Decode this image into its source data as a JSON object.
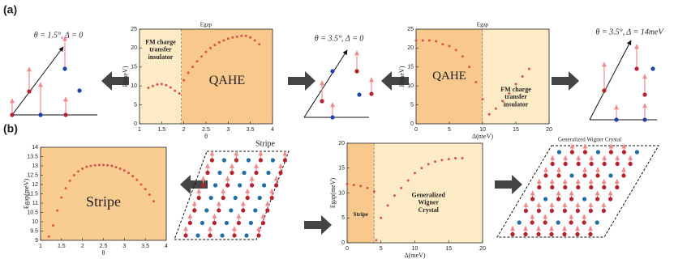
{
  "panel_labels": [
    "(a)",
    "(b)"
  ],
  "diagram_titles": [
    "θ = 1.5°, Δ = 0",
    "θ = 3.5°, Δ = 0",
    "θ = 3.5°, Δ = 14meV",
    "Stripe",
    "Generalized Wigner Crystal"
  ],
  "chart_data": [
    {
      "type": "scatter",
      "title": "Egap",
      "xlabel": "θ",
      "ylabel": "E(meV)",
      "color": "#d9534f",
      "xlim": [
        1,
        4
      ],
      "xticks": [
        1,
        1.5,
        2,
        2.5,
        3,
        3.5,
        4
      ],
      "ylim": [
        0,
        25
      ],
      "yticks": [
        0,
        5,
        10,
        15,
        20,
        25
      ],
      "regions": [
        {
          "label": [
            "FM charge",
            "transfer",
            "insulator"
          ],
          "from": 1,
          "to": 1.95,
          "color": "#fdebc6"
        },
        {
          "label": [
            "QAHE"
          ],
          "from": 1.95,
          "to": 4,
          "color": "#f8c88c"
        }
      ],
      "x": [
        1.2,
        1.3,
        1.4,
        1.5,
        1.6,
        1.7,
        1.8,
        1.9,
        2.0,
        2.1,
        2.2,
        2.3,
        2.4,
        2.5,
        2.6,
        2.7,
        2.8,
        2.9,
        3.0,
        3.1,
        3.2,
        3.3,
        3.4,
        3.5,
        3.6,
        3.7
      ],
      "values": [
        9.5,
        10,
        10.4,
        10.5,
        10.2,
        9.6,
        8.7,
        8.0,
        11.5,
        13.5,
        15,
        16.5,
        17.8,
        19,
        20,
        20.8,
        21.5,
        22,
        22.5,
        22.8,
        23,
        23.2,
        23.2,
        22.8,
        22,
        21
      ]
    },
    {
      "type": "scatter",
      "title": "Egap",
      "xlabel": "Δ(meV)",
      "ylabel": "E(meV)",
      "color": "#d9534f",
      "xlim": [
        0,
        20
      ],
      "xticks": [
        0,
        5,
        10,
        15,
        20
      ],
      "ylim": [
        0,
        25
      ],
      "yticks": [
        0,
        5,
        10,
        15,
        20,
        25
      ],
      "regions": [
        {
          "label": [
            "QAHE"
          ],
          "from": 0,
          "to": 10,
          "color": "#f8c88c"
        },
        {
          "label": [
            "FM charge",
            "transfer",
            "insulator"
          ],
          "from": 10,
          "to": 20,
          "color": "#fdebc6"
        }
      ],
      "x": [
        0,
        1,
        2,
        3,
        4,
        5,
        6,
        7,
        8,
        9,
        10,
        11,
        12,
        13,
        14,
        15,
        16,
        17
      ],
      "values": [
        22,
        22,
        22,
        21.8,
        21,
        20.5,
        19.5,
        17.8,
        15,
        11,
        6.5,
        2.5,
        4,
        6,
        8,
        10.5,
        12.5,
        14.5
      ]
    },
    {
      "type": "scatter",
      "xlabel": "θ",
      "ylabel": "Egap(meV)",
      "color": "#d9534f",
      "xlim": [
        1,
        4
      ],
      "xticks": [
        1,
        1.5,
        2,
        2.5,
        3,
        3.5,
        4
      ],
      "ylim": [
        9,
        14
      ],
      "yticks": [
        9,
        9.5,
        10,
        10.5,
        11,
        11.5,
        12,
        12.5,
        13,
        13.5,
        14
      ],
      "regions": [
        {
          "label": [
            "Stripe"
          ],
          "from": 1,
          "to": 4,
          "color": "#f9cd92"
        }
      ],
      "x": [
        1.2,
        1.3,
        1.4,
        1.5,
        1.6,
        1.7,
        1.8,
        1.9,
        2.0,
        2.1,
        2.2,
        2.3,
        2.4,
        2.5,
        2.6,
        2.7,
        2.8,
        2.9,
        3.0,
        3.1,
        3.2,
        3.3,
        3.4,
        3.5,
        3.6,
        3.7
      ],
      "values": [
        9.2,
        9.8,
        10.6,
        11.3,
        11.8,
        12.2,
        12.5,
        12.7,
        12.85,
        12.95,
        13,
        13.03,
        13.05,
        13.05,
        13.03,
        13,
        12.93,
        12.85,
        12.75,
        12.62,
        12.45,
        12.25,
        12,
        11.75,
        11.45,
        11.1
      ]
    },
    {
      "type": "scatter",
      "xlabel": "Δ(meV)",
      "ylabel": "Egap(meV)",
      "color": "#d9534f",
      "xlim": [
        0,
        20
      ],
      "xticks": [
        0,
        5,
        10,
        15,
        20
      ],
      "ylim": [
        0,
        20
      ],
      "yticks": [
        0,
        5,
        10,
        15,
        20
      ],
      "regions": [
        {
          "label": [
            "Stripe"
          ],
          "from": 0,
          "to": 4,
          "color": "#f8c88c"
        },
        {
          "label": [
            "Generalized",
            "Wigner",
            "Crystal"
          ],
          "from": 4,
          "to": 20,
          "color": "#fdebc6"
        }
      ],
      "x": [
        0,
        1,
        2,
        3,
        4,
        4.3,
        5,
        6,
        7,
        8,
        9,
        10,
        11,
        12,
        13,
        14,
        15,
        16,
        17
      ],
      "values": [
        11.8,
        11.6,
        11.4,
        11,
        10.3,
        0.5,
        5,
        7.5,
        9.5,
        11,
        12.5,
        14,
        15,
        15.8,
        16.3,
        16.6,
        16.8,
        17,
        17
      ]
    }
  ]
}
